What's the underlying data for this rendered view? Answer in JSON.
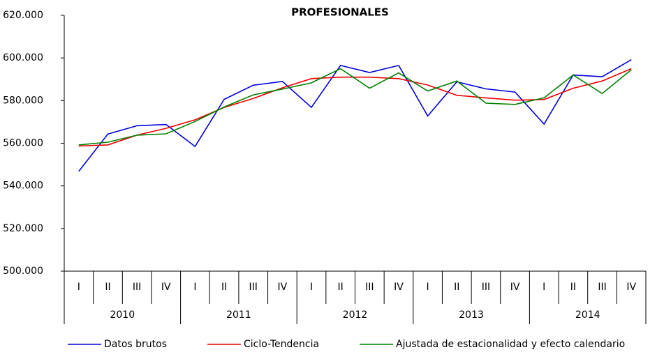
{
  "chart_data": {
    "type": "line",
    "title": "PROFESIONALES",
    "categories": [
      "I",
      "II",
      "III",
      "IV",
      "I",
      "II",
      "III",
      "IV",
      "I",
      "II",
      "III",
      "IV",
      "I",
      "II",
      "III",
      "IV",
      "I",
      "II",
      "III",
      "IV"
    ],
    "groups": [
      "2010",
      "2011",
      "2012",
      "2013",
      "2014"
    ],
    "series": [
      {
        "name": "Datos brutos",
        "color": "#0000dd",
        "values": [
          546800,
          564300,
          568200,
          568800,
          558500,
          580600,
          587200,
          589000,
          576800,
          596500,
          593200,
          596500,
          572800,
          588800,
          585500,
          584000,
          569000,
          592000,
          591200,
          599200
        ]
      },
      {
        "name": "Ciclo-Tendencia",
        "color": "#ee0000",
        "values": [
          558700,
          559200,
          563800,
          567000,
          571000,
          576800,
          581000,
          586000,
          590300,
          591000,
          591000,
          590300,
          587300,
          582500,
          581300,
          580200,
          580500,
          585800,
          589200,
          595000
        ]
      },
      {
        "name": "Ajustada de estacionalidad y efecto calendario",
        "color": "#008000",
        "values": [
          559200,
          560500,
          563800,
          564400,
          570200,
          577000,
          582700,
          585400,
          588300,
          595000,
          585800,
          593000,
          584500,
          589200,
          578800,
          578200,
          581300,
          592000,
          583300,
          594500
        ]
      }
    ],
    "ylim": [
      500000,
      620000
    ],
    "yticks": [
      {
        "value": 500000,
        "label": "500.000"
      },
      {
        "value": 520000,
        "label": "520.000"
      },
      {
        "value": 540000,
        "label": "540.000"
      },
      {
        "value": 560000,
        "label": "560.000"
      },
      {
        "value": 580000,
        "label": "580.000"
      },
      {
        "value": 600000,
        "label": "600.000"
      },
      {
        "value": 620000,
        "label": "620.000"
      }
    ],
    "legend": "bottom"
  }
}
